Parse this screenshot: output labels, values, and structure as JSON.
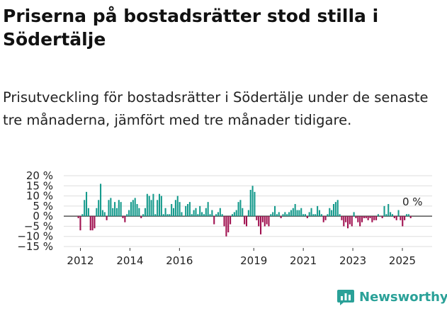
{
  "header": {
    "title": "Priserna på bostadsrätter stod stilla i Södertälje",
    "subtitle": "Prisutveckling för bostadsrätter i Södertälje under de senaste tre månaderna, jämfört med tre månader tidigare."
  },
  "brand": {
    "name": "Newsworthy",
    "color": "#2aa198"
  },
  "chart_data": {
    "type": "bar",
    "title": "",
    "xlabel": "",
    "ylabel": "",
    "unit": "%",
    "ylim": [
      -15,
      20
    ],
    "y_ticks": [
      20,
      15,
      10,
      5,
      0,
      -5,
      -10,
      -15
    ],
    "y_tick_labels": [
      "20 %",
      "15 %",
      "10 %",
      "5 %",
      "0 %",
      "−5 %",
      "−10 %",
      "−15 %"
    ],
    "x_ticks": [
      "2012",
      "2014",
      "2016",
      "2019",
      "2021",
      "2023",
      "2025"
    ],
    "grid": true,
    "colors": {
      "positive": "#159a8c",
      "negative": "#a0104f",
      "grid": "#dddddd",
      "zero_line": "#333333"
    },
    "start_month": "2011-12",
    "end_month": "2025-06",
    "annotation": {
      "label": "0 %",
      "month": "2025-06",
      "value": 0
    },
    "values": [
      -1,
      -7,
      1,
      8,
      12,
      4,
      -7,
      -7,
      -6,
      4,
      8,
      16,
      3,
      2,
      -2,
      8,
      9,
      4,
      7,
      4,
      8,
      7,
      -1,
      -3,
      1,
      3,
      7,
      8,
      9,
      6,
      4,
      -1,
      1,
      4,
      11,
      10,
      8,
      11,
      1,
      8,
      11,
      10,
      1,
      4,
      1,
      1,
      6,
      4,
      8,
      10,
      7,
      2,
      0,
      5,
      6,
      7,
      1,
      3,
      4,
      1,
      5,
      2,
      1,
      4,
      7,
      1,
      3,
      -4,
      1,
      2,
      4,
      1,
      -5,
      -10,
      -8,
      -4,
      1,
      2,
      3,
      7,
      8,
      4,
      -4,
      -5,
      3,
      13,
      15,
      12,
      -2,
      -5,
      -9,
      -3,
      -5,
      -4,
      -5,
      1,
      2,
      5,
      1,
      2,
      -1,
      1,
      2,
      1,
      2,
      3,
      4,
      6,
      3,
      3,
      4,
      1,
      1,
      -1,
      2,
      4,
      1,
      1,
      5,
      3,
      1,
      -3,
      -2,
      1,
      4,
      3,
      6,
      7,
      8,
      1,
      -2,
      -5,
      -3,
      -6,
      -4,
      -5,
      2,
      -1,
      -3,
      -5,
      -3,
      -1,
      -1,
      -2,
      -1,
      -3,
      -2,
      -2,
      1,
      0,
      -1,
      5,
      1,
      6,
      2,
      1,
      -1,
      -2,
      3,
      -2,
      -5,
      -2,
      1,
      1,
      -1,
      0
    ]
  }
}
